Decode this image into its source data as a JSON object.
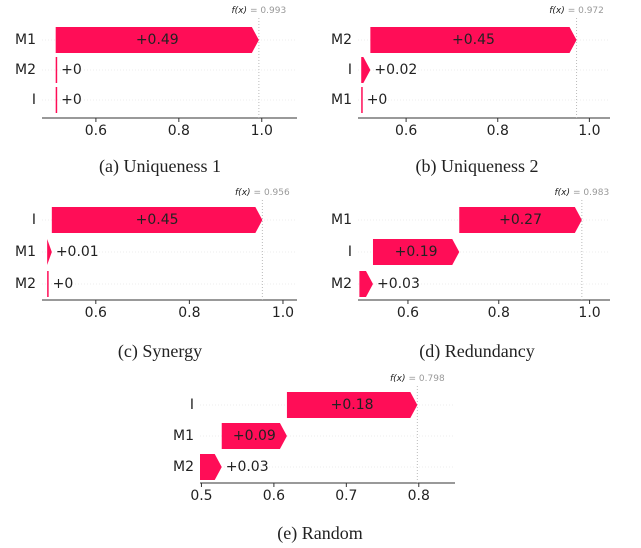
{
  "chart_data": [
    {
      "type": "waterfall",
      "title": "(a) Uniqueness 1",
      "categories": [
        "M1",
        "M2",
        "I"
      ],
      "values": [
        0.49,
        0,
        0
      ],
      "value_labels": [
        "+0.49",
        "+0",
        "+0"
      ],
      "color": "#ff0d57",
      "fx_name": "f(x)",
      "fx": {
        "value": 0.993,
        "label": "= 0.993"
      },
      "xlim": [
        0.47,
        1.085
      ],
      "xticks": [
        0.6,
        0.8,
        {
          "value": 1.0,
          "label": "1.0"
        }
      ]
    },
    {
      "type": "waterfall",
      "title": "(b) Uniqueness 2",
      "categories": [
        "M2",
        "I",
        "M1"
      ],
      "values": [
        0.45,
        0.02,
        0
      ],
      "value_labels": [
        "+0.45",
        "+0.02",
        "+0"
      ],
      "color": "#ff0d57",
      "fx_name": "f(x)",
      "fx": {
        "value": 0.972,
        "label": "= 0.972"
      },
      "xlim": [
        0.495,
        1.045
      ],
      "xticks": [
        0.6,
        0.8,
        {
          "value": 1.0,
          "label": "1.0"
        }
      ]
    },
    {
      "type": "waterfall",
      "title": "(c) Synergy",
      "categories": [
        "I",
        "M1",
        "M2"
      ],
      "values": [
        0.45,
        0.01,
        0
      ],
      "value_labels": [
        "+0.45",
        "+0.01",
        "+0"
      ],
      "color": "#ff0d57",
      "fx_name": "f(x)",
      "fx": {
        "value": 0.956,
        "label": "= 0.956"
      },
      "xlim": [
        0.485,
        1.03
      ],
      "xticks": [
        0.6,
        0.8,
        {
          "value": 1.0,
          "label": "1.0"
        }
      ]
    },
    {
      "type": "waterfall",
      "title": "(d) Redundancy",
      "categories": [
        "M1",
        "I",
        "M2"
      ],
      "values": [
        0.27,
        0.19,
        0.03
      ],
      "value_labels": [
        "+0.27",
        "+0.19",
        "+0.03"
      ],
      "color": "#ff0d57",
      "fx_name": "f(x)",
      "fx": {
        "value": 0.983,
        "label": "= 0.983"
      },
      "xlim": [
        0.49,
        1.045
      ],
      "xticks": [
        0.6,
        0.8,
        {
          "value": 1.0,
          "label": "1.0"
        }
      ]
    },
    {
      "type": "waterfall",
      "title": "(e) Random",
      "categories": [
        "I",
        "M1",
        "M2"
      ],
      "values": [
        0.18,
        0.09,
        0.03
      ],
      "value_labels": [
        "+0.18",
        "+0.09",
        "+0.03"
      ],
      "color": "#ff0d57",
      "fx_name": "f(x)",
      "fx": {
        "value": 0.798,
        "label": "= 0.798"
      },
      "xlim": [
        0.498,
        0.85
      ],
      "xticks": [
        0.5,
        0.6,
        0.7,
        0.8
      ]
    }
  ]
}
